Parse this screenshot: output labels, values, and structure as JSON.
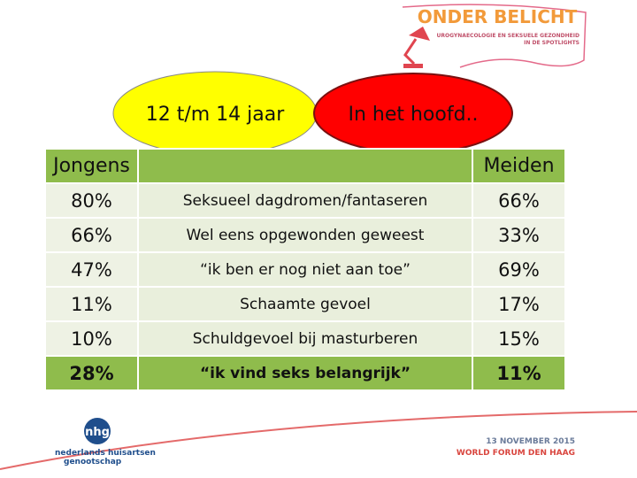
{
  "header": {
    "title": "ONDER BELICHT",
    "subtitle_lines": [
      "UROGYNAECOLOGIE EN SEKSUELE GEZONDHEID",
      "IN DE SPOTLIGHTS"
    ]
  },
  "badges": [
    "12 t/m 14 jaar",
    "In het hoofd.."
  ],
  "table": {
    "header": {
      "left": "Jongens",
      "right": "Meiden"
    },
    "rows": [
      [
        "80%",
        "Seksueel dagdromen/fantaseren",
        "66%"
      ],
      [
        "66%",
        "Wel eens  opgewonden geweest",
        "33%"
      ],
      [
        "47%",
        "“ik ben er nog niet aan toe”",
        "69%"
      ],
      [
        "11%",
        "Schaamte gevoel",
        "17%"
      ],
      [
        "10%",
        "Schuldgevoel bij masturberen",
        "15%"
      ],
      [
        "28%",
        "“ik vind seks belangrijk”",
        "11%"
      ]
    ]
  },
  "footer": {
    "logo": "nhg",
    "organization_lines": [
      "nederlands huisartsen",
      "genootschap"
    ],
    "date": "13 NOVEMBER 2015",
    "venue": "WORLD FORUM DEN HAAG"
  }
}
